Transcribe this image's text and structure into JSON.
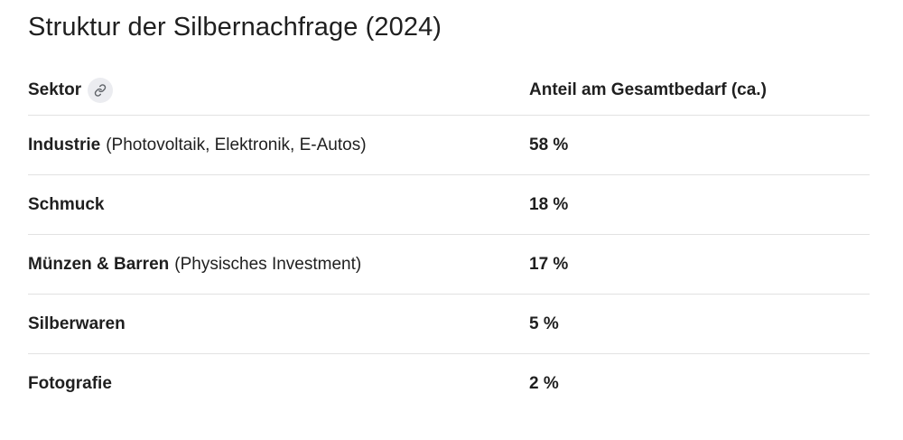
{
  "title": "Struktur der Silbernachfrage (2024)",
  "table": {
    "headers": {
      "sector": "Sektor",
      "share": "Anteil am Gesamtbedarf (ca.)"
    },
    "link_icon": "link-icon",
    "rows": [
      {
        "name": "Industrie",
        "detail": "(Photovoltaik, Elektronik, E-Autos)",
        "share": "58 %"
      },
      {
        "name": "Schmuck",
        "detail": "",
        "share": "18 %"
      },
      {
        "name": "Münzen & Barren",
        "detail": "(Physisches Investment)",
        "share": "17 %"
      },
      {
        "name": "Silberwaren",
        "detail": "",
        "share": "5 %"
      },
      {
        "name": "Fotografie",
        "detail": "",
        "share": "2 %"
      }
    ]
  }
}
